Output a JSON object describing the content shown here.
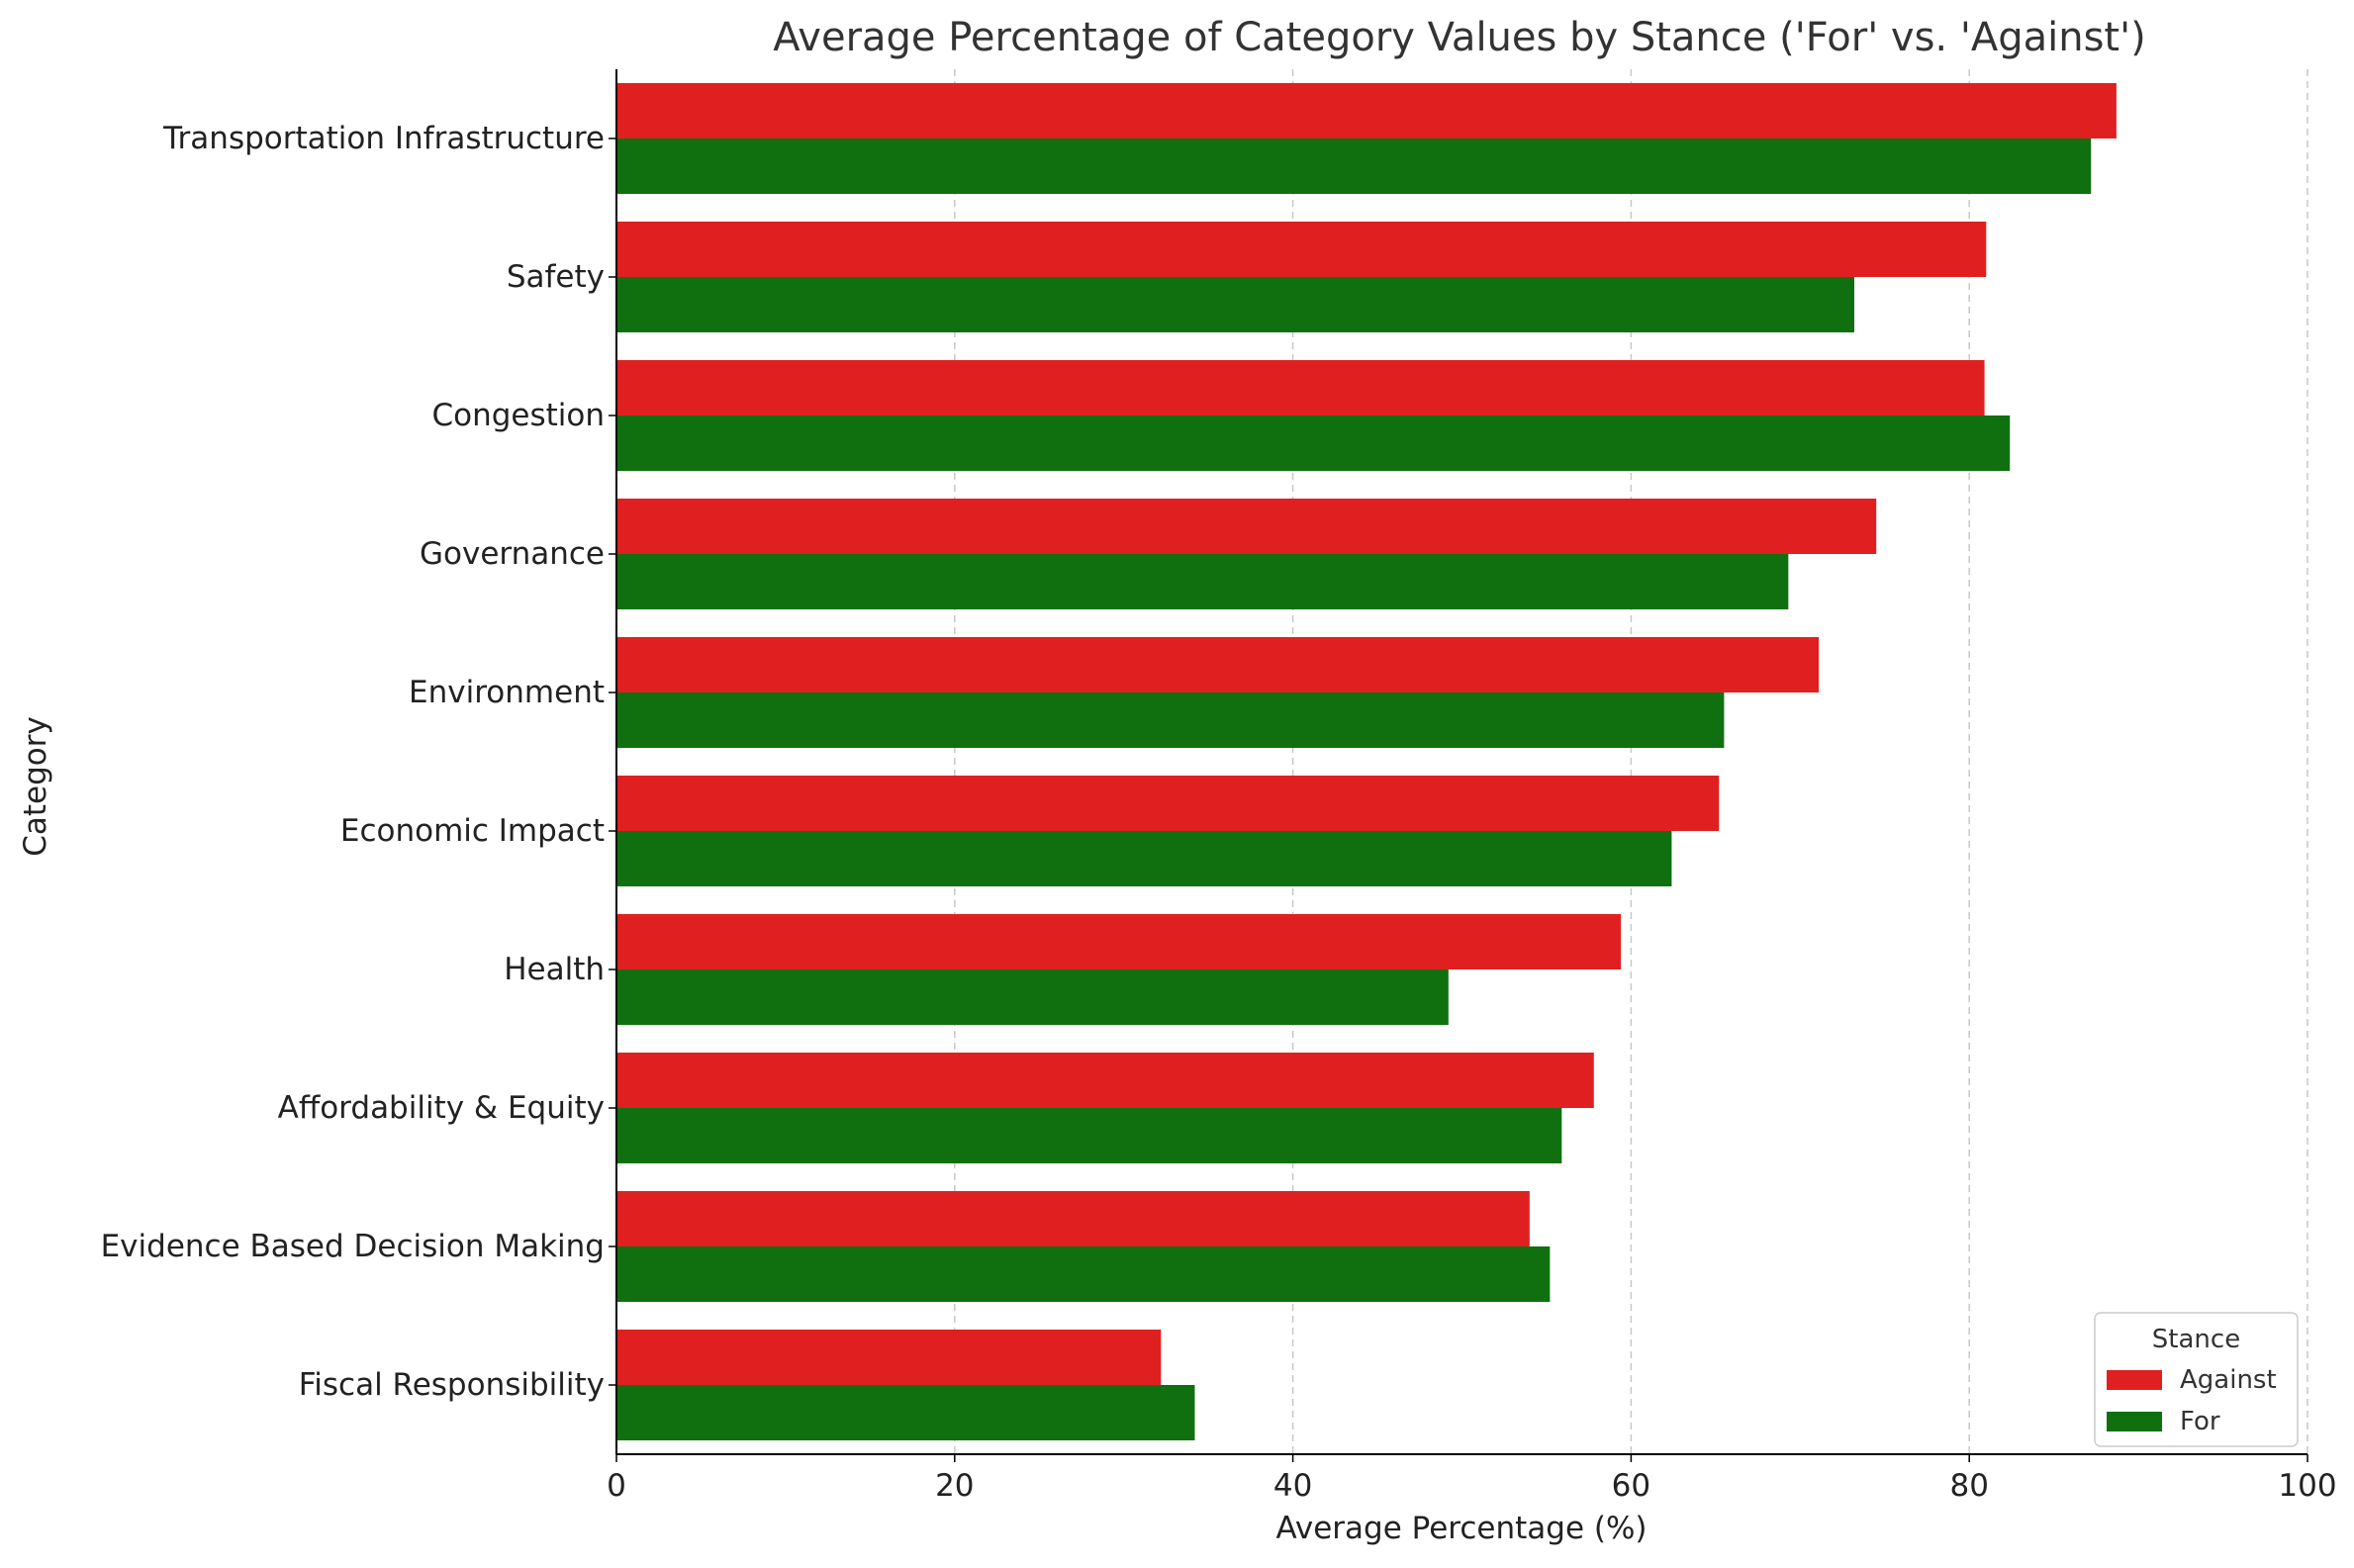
{
  "chart_data": {
    "type": "bar",
    "orientation": "horizontal",
    "title": "Average Percentage of Category Values by Stance ('For' vs. 'Against')",
    "xlabel": "Average Percentage (%)",
    "ylabel": "Category",
    "xlim": [
      0,
      100
    ],
    "xticks": [
      0,
      20,
      40,
      60,
      80,
      100
    ],
    "grid": "x-dashed",
    "legend": {
      "title": "Stance",
      "placement": "bottom-right"
    },
    "categories": [
      "Transportation Infrastructure",
      "Safety",
      "Congestion",
      "Governance",
      "Environment",
      "Economic Impact",
      "Health",
      "Affordability & Equity",
      "Evidence Based Decision Making",
      "Fiscal Responsibility"
    ],
    "series": [
      {
        "name": "Against",
        "color": "#e02020",
        "values": [
          88.7,
          81.0,
          80.9,
          74.5,
          71.1,
          65.2,
          59.4,
          57.8,
          54.0,
          32.2
        ]
      },
      {
        "name": "For",
        "color": "#107010",
        "values": [
          87.2,
          73.2,
          82.4,
          69.3,
          65.5,
          62.4,
          49.2,
          55.9,
          55.2,
          34.2
        ]
      }
    ]
  }
}
